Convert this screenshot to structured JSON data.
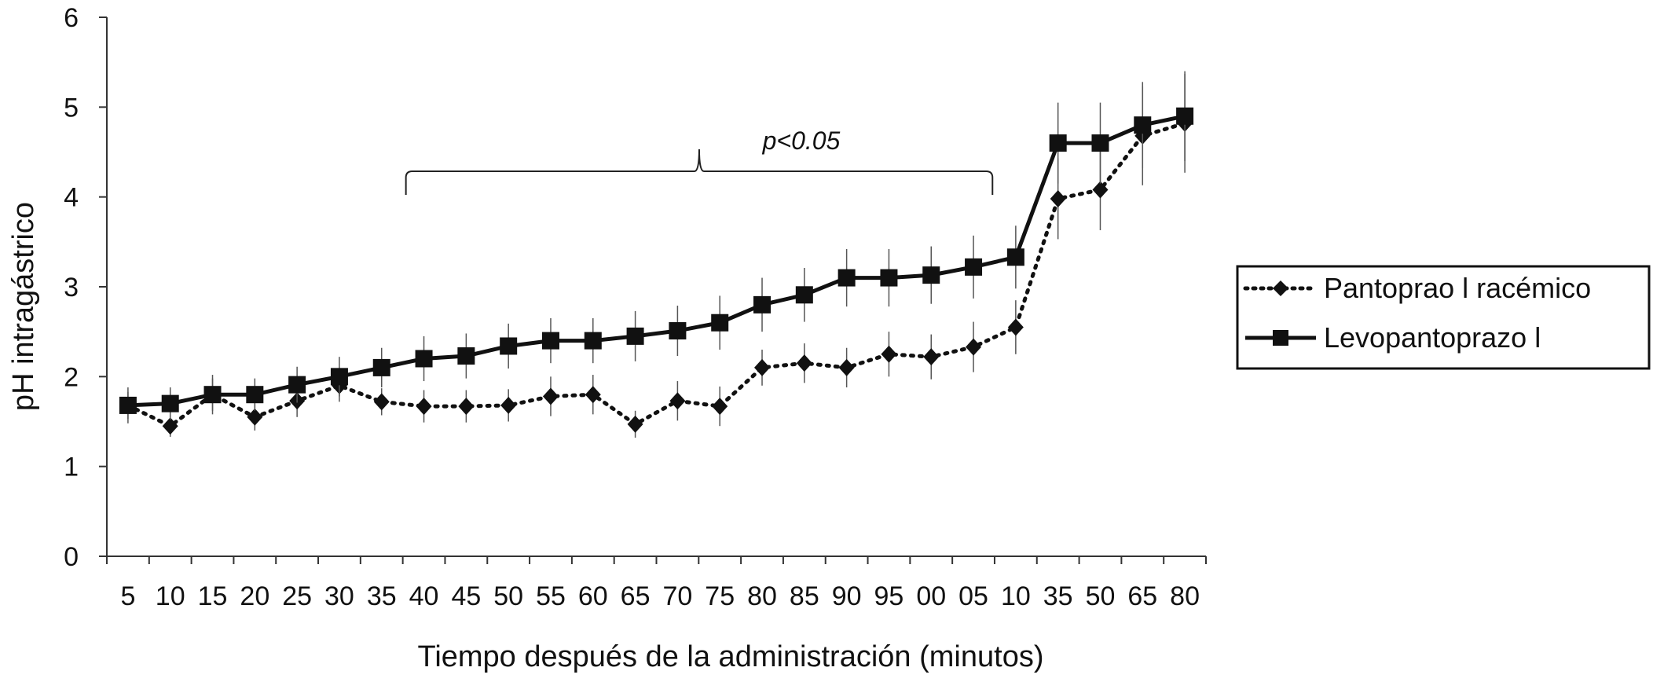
{
  "chart_data": {
    "type": "line",
    "title": "",
    "xlabel": "Tiempo después de la administración (minutos)",
    "ylabel": "pH intragástrico",
    "ylim": [
      0,
      6
    ],
    "yticks": [
      "0",
      "1",
      "2",
      "3",
      "4",
      "5",
      "6"
    ],
    "categories": [
      "5",
      "10",
      "15",
      "20",
      "25",
      "30",
      "35",
      "40",
      "45",
      "50",
      "55",
      "60",
      "65",
      "70",
      "75",
      "80",
      "85",
      "90",
      "95",
      "00",
      "05",
      "10",
      "35",
      "50",
      "65",
      "80"
    ],
    "grid": false,
    "legend_position": "right",
    "series": [
      {
        "name": "Pantoprao l racémico",
        "style": "dotted",
        "marker": "diamond",
        "color": "#111111",
        "values": [
          1.68,
          1.45,
          1.8,
          1.55,
          1.73,
          1.9,
          1.72,
          1.67,
          1.67,
          1.68,
          1.78,
          1.8,
          1.47,
          1.73,
          1.67,
          2.1,
          2.15,
          2.1,
          2.25,
          2.22,
          2.33,
          2.55,
          3.98,
          4.08,
          4.68,
          4.82
        ],
        "error": [
          0.15,
          0.12,
          0.18,
          0.15,
          0.18,
          0.18,
          0.15,
          0.18,
          0.18,
          0.18,
          0.22,
          0.22,
          0.15,
          0.22,
          0.22,
          0.2,
          0.22,
          0.22,
          0.25,
          0.25,
          0.28,
          0.3,
          0.45,
          0.45,
          0.55,
          0.55
        ]
      },
      {
        "name": "Levopantoprazo l",
        "style": "solid",
        "marker": "square",
        "color": "#111111",
        "values": [
          1.68,
          1.7,
          1.8,
          1.8,
          1.91,
          2.0,
          2.1,
          2.2,
          2.23,
          2.34,
          2.4,
          2.4,
          2.45,
          2.51,
          2.6,
          2.8,
          2.91,
          3.1,
          3.1,
          3.13,
          3.22,
          3.33,
          4.6,
          4.6,
          4.8,
          4.9
        ],
        "error": [
          0.2,
          0.18,
          0.22,
          0.18,
          0.2,
          0.22,
          0.22,
          0.25,
          0.25,
          0.25,
          0.25,
          0.25,
          0.28,
          0.28,
          0.3,
          0.3,
          0.3,
          0.32,
          0.32,
          0.32,
          0.35,
          0.35,
          0.45,
          0.45,
          0.48,
          0.5
        ]
      }
    ],
    "annotations": [
      {
        "text": "p<0.05",
        "from_category": "40",
        "to_category": "05"
      }
    ]
  }
}
